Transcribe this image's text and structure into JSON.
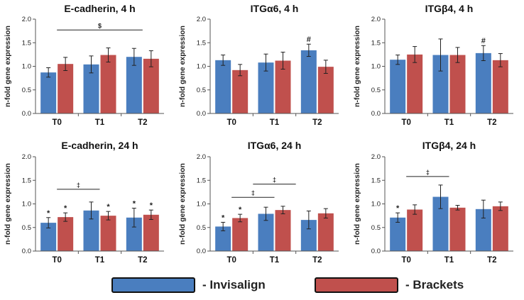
{
  "chart_data": [
    {
      "type": "bar",
      "title": "E-cadherin, 4 h",
      "ylabel": "n-fold gene expression",
      "xlabel": "",
      "ylim": [
        0,
        2.0
      ],
      "yticks": [
        "0.0",
        "0.5",
        "1.0",
        "1.5",
        "2.0"
      ],
      "categories": [
        "T0",
        "T1",
        "T2"
      ],
      "series": [
        {
          "name": "Invisalign",
          "color": "#4a7ebf",
          "values": [
            0.87,
            1.04,
            1.2
          ],
          "errors": [
            0.1,
            0.18,
            0.18
          ],
          "marks": [
            "",
            "",
            ""
          ]
        },
        {
          "name": "Brackets",
          "color": "#c0504d",
          "values": [
            1.05,
            1.24,
            1.16
          ],
          "errors": [
            0.14,
            0.15,
            0.17
          ],
          "marks": [
            "",
            "",
            ""
          ]
        }
      ],
      "brackets": [
        {
          "from": 0,
          "to": 2,
          "y": 1.77,
          "label": "$"
        }
      ]
    },
    {
      "type": "bar",
      "title": "ITGα6, 4 h",
      "ylabel": "n-fold gene expression",
      "xlabel": "",
      "ylim": [
        0,
        2.0
      ],
      "yticks": [
        "0.0",
        "0.5",
        "1.0",
        "1.5",
        "2.0"
      ],
      "categories": [
        "T0",
        "T1",
        "T2"
      ],
      "series": [
        {
          "name": "Invisalign",
          "color": "#4a7ebf",
          "values": [
            1.13,
            1.08,
            1.34
          ],
          "errors": [
            0.11,
            0.18,
            0.13
          ],
          "marks": [
            "",
            "",
            "#"
          ]
        },
        {
          "name": "Brackets",
          "color": "#c0504d",
          "values": [
            0.92,
            1.12,
            0.99
          ],
          "errors": [
            0.12,
            0.18,
            0.14
          ],
          "marks": [
            "",
            "",
            ""
          ]
        }
      ],
      "brackets": []
    },
    {
      "type": "bar",
      "title": "ITGβ4, 4 h",
      "ylabel": "n-fold gene expression",
      "xlabel": "",
      "ylim": [
        0,
        2.0
      ],
      "yticks": [
        "0.0",
        "0.5",
        "1.0",
        "1.5",
        "2.0"
      ],
      "categories": [
        "T0",
        "T1",
        "T2"
      ],
      "series": [
        {
          "name": "Invisalign",
          "color": "#4a7ebf",
          "values": [
            1.14,
            1.24,
            1.28
          ],
          "errors": [
            0.1,
            0.34,
            0.16
          ],
          "marks": [
            "",
            "",
            "#"
          ]
        },
        {
          "name": "Brackets",
          "color": "#c0504d",
          "values": [
            1.25,
            1.24,
            1.13
          ],
          "errors": [
            0.17,
            0.16,
            0.14
          ],
          "marks": [
            "",
            "",
            ""
          ]
        }
      ],
      "brackets": []
    },
    {
      "type": "bar",
      "title": "E-cadherin, 24 h",
      "ylabel": "n-fold gene expression",
      "xlabel": "",
      "ylim": [
        0,
        2.0
      ],
      "yticks": [
        "0.0",
        "0.5",
        "1.0",
        "1.5",
        "2.0"
      ],
      "categories": [
        "T0",
        "T1",
        "T2"
      ],
      "series": [
        {
          "name": "Invisalign",
          "color": "#4a7ebf",
          "values": [
            0.6,
            0.86,
            0.71
          ],
          "errors": [
            0.11,
            0.18,
            0.2
          ],
          "marks": [
            "*",
            "",
            "*"
          ]
        },
        {
          "name": "Brackets",
          "color": "#c0504d",
          "values": [
            0.72,
            0.75,
            0.77
          ],
          "errors": [
            0.09,
            0.09,
            0.1
          ],
          "marks": [
            "*",
            "*",
            "*"
          ]
        }
      ],
      "brackets": [
        {
          "from": 0,
          "to": 1,
          "y": 1.31,
          "label": "‡"
        }
      ]
    },
    {
      "type": "bar",
      "title": "ITGα6, 24 h",
      "ylabel": "n-fold gene expression",
      "xlabel": "",
      "ylim": [
        0,
        2.0
      ],
      "yticks": [
        "0.0",
        "0.5",
        "1.0",
        "1.5",
        "2.0"
      ],
      "categories": [
        "T0",
        "T1",
        "T2"
      ],
      "series": [
        {
          "name": "Invisalign",
          "color": "#4a7ebf",
          "values": [
            0.52,
            0.79,
            0.66
          ],
          "errors": [
            0.09,
            0.14,
            0.19
          ],
          "marks": [
            "*",
            "",
            ""
          ]
        },
        {
          "name": "Brackets",
          "color": "#c0504d",
          "values": [
            0.7,
            0.87,
            0.8
          ],
          "errors": [
            0.08,
            0.08,
            0.1
          ],
          "marks": [
            "*",
            "",
            ""
          ]
        }
      ],
      "brackets": [
        {
          "from": 0,
          "to": 1,
          "y": 1.14,
          "label": "‡"
        },
        {
          "from": 0.5,
          "to": 1.5,
          "y": 1.42,
          "label": "‡"
        }
      ]
    },
    {
      "type": "bar",
      "title": "ITGβ4, 24 h",
      "ylabel": "n-fold gene expression",
      "xlabel": "",
      "ylim": [
        0,
        2.0
      ],
      "yticks": [
        "0.0",
        "0.5",
        "1.0",
        "1.5",
        "2.0"
      ],
      "categories": [
        "T0",
        "T1",
        "T2"
      ],
      "series": [
        {
          "name": "Invisalign",
          "color": "#4a7ebf",
          "values": [
            0.71,
            1.15,
            0.89
          ],
          "errors": [
            0.1,
            0.25,
            0.19
          ],
          "marks": [
            "*",
            "",
            ""
          ]
        },
        {
          "name": "Brackets",
          "color": "#c0504d",
          "values": [
            0.88,
            0.92,
            0.95
          ],
          "errors": [
            0.1,
            0.05,
            0.09
          ],
          "marks": [
            "",
            "",
            ""
          ]
        }
      ],
      "brackets": [
        {
          "from": 0,
          "to": 1,
          "y": 1.58,
          "label": "‡"
        }
      ]
    }
  ],
  "legend": [
    {
      "label": "- Invisalign",
      "color": "#4a7ebf"
    },
    {
      "label": "- Brackets",
      "color": "#c0504d"
    }
  ]
}
